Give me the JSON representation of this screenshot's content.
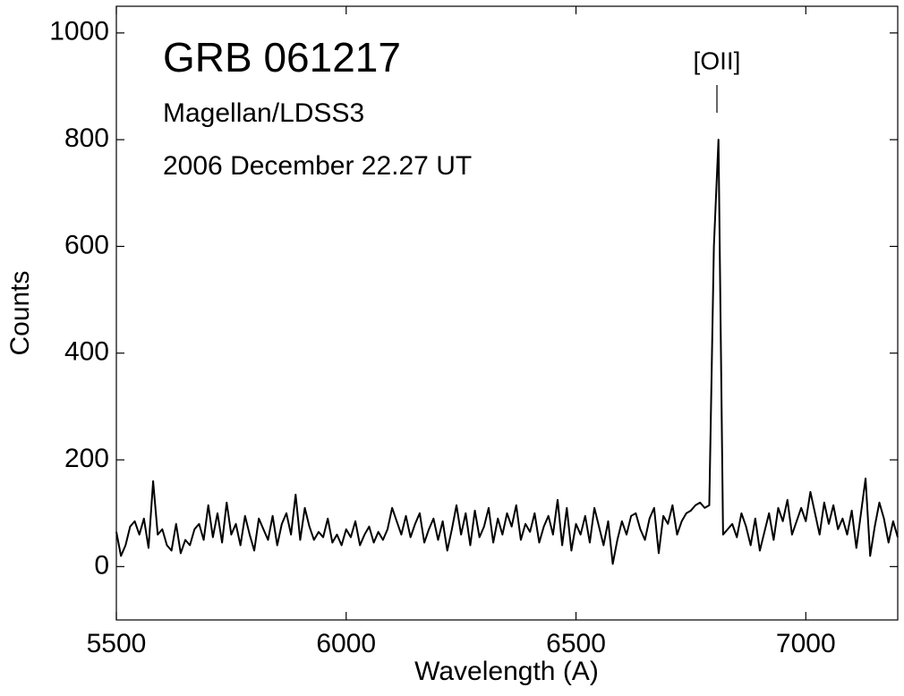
{
  "chart_data": {
    "type": "line",
    "title": "GRB 061217",
    "annotations": [
      "Magellan/LDSS3",
      "2006 December 22.27 UT"
    ],
    "line_label": "[OII]",
    "xlabel": "Wavelength  (A)",
    "ylabel": "Counts",
    "color": "#000000",
    "xlim": [
      5500,
      7200
    ],
    "xticks": [
      5500,
      6000,
      6500,
      7000
    ],
    "ylim": [
      -100,
      1050
    ],
    "yticks": [
      0,
      200,
      400,
      600,
      800,
      1000
    ],
    "grid": false,
    "x": [
      5500,
      5510,
      5520,
      5530,
      5540,
      5550,
      5560,
      5570,
      5580,
      5590,
      5600,
      5610,
      5620,
      5630,
      5640,
      5650,
      5660,
      5670,
      5680,
      5690,
      5700,
      5710,
      5720,
      5730,
      5740,
      5750,
      5760,
      5770,
      5780,
      5790,
      5800,
      5810,
      5820,
      5830,
      5840,
      5850,
      5860,
      5870,
      5880,
      5890,
      5900,
      5910,
      5920,
      5930,
      5940,
      5950,
      5960,
      5970,
      5980,
      5990,
      6000,
      6010,
      6020,
      6030,
      6040,
      6050,
      6060,
      6070,
      6080,
      6090,
      6100,
      6110,
      6120,
      6130,
      6140,
      6150,
      6160,
      6170,
      6180,
      6190,
      6200,
      6210,
      6220,
      6230,
      6240,
      6250,
      6260,
      6270,
      6280,
      6290,
      6300,
      6310,
      6320,
      6330,
      6340,
      6350,
      6360,
      6370,
      6380,
      6390,
      6400,
      6410,
      6420,
      6430,
      6440,
      6450,
      6460,
      6470,
      6480,
      6490,
      6500,
      6510,
      6520,
      6530,
      6540,
      6550,
      6560,
      6570,
      6580,
      6590,
      6600,
      6610,
      6620,
      6630,
      6640,
      6650,
      6660,
      6670,
      6680,
      6690,
      6700,
      6710,
      6720,
      6730,
      6740,
      6750,
      6760,
      6770,
      6780,
      6790,
      6800,
      6810,
      6820,
      6830,
      6840,
      6850,
      6860,
      6870,
      6880,
      6890,
      6900,
      6910,
      6920,
      6930,
      6940,
      6950,
      6960,
      6970,
      6980,
      6990,
      7000,
      7010,
      7020,
      7030,
      7040,
      7050,
      7060,
      7070,
      7080,
      7090,
      7100,
      7110,
      7120,
      7130,
      7140,
      7150,
      7160,
      7170,
      7180,
      7190,
      7200
    ],
    "values": [
      65,
      20,
      40,
      75,
      85,
      60,
      90,
      35,
      160,
      60,
      70,
      40,
      30,
      80,
      25,
      50,
      40,
      70,
      80,
      50,
      115,
      55,
      100,
      45,
      120,
      60,
      80,
      40,
      95,
      60,
      30,
      90,
      70,
      50,
      95,
      40,
      80,
      100,
      60,
      135,
      50,
      110,
      75,
      50,
      65,
      55,
      90,
      45,
      60,
      40,
      70,
      55,
      85,
      40,
      60,
      75,
      45,
      65,
      50,
      70,
      110,
      85,
      60,
      95,
      55,
      80,
      100,
      45,
      70,
      90,
      50,
      85,
      30,
      70,
      115,
      60,
      100,
      40,
      105,
      55,
      75,
      110,
      45,
      90,
      60,
      100,
      75,
      115,
      50,
      80,
      65,
      100,
      45,
      75,
      95,
      60,
      125,
      40,
      110,
      30,
      80,
      60,
      95,
      45,
      110,
      75,
      40,
      85,
      5,
      50,
      85,
      60,
      95,
      100,
      70,
      50,
      90,
      110,
      25,
      95,
      80,
      115,
      60,
      85,
      100,
      105,
      115,
      120,
      110,
      115,
      600,
      800,
      60,
      70,
      80,
      55,
      100,
      75,
      40,
      90,
      30,
      65,
      100,
      50,
      110,
      85,
      125,
      60,
      85,
      110,
      85,
      140,
      100,
      60,
      120,
      80,
      115,
      70,
      90,
      60,
      105,
      35,
      100,
      165,
      20,
      75,
      120,
      90,
      45,
      85,
      55
    ]
  }
}
